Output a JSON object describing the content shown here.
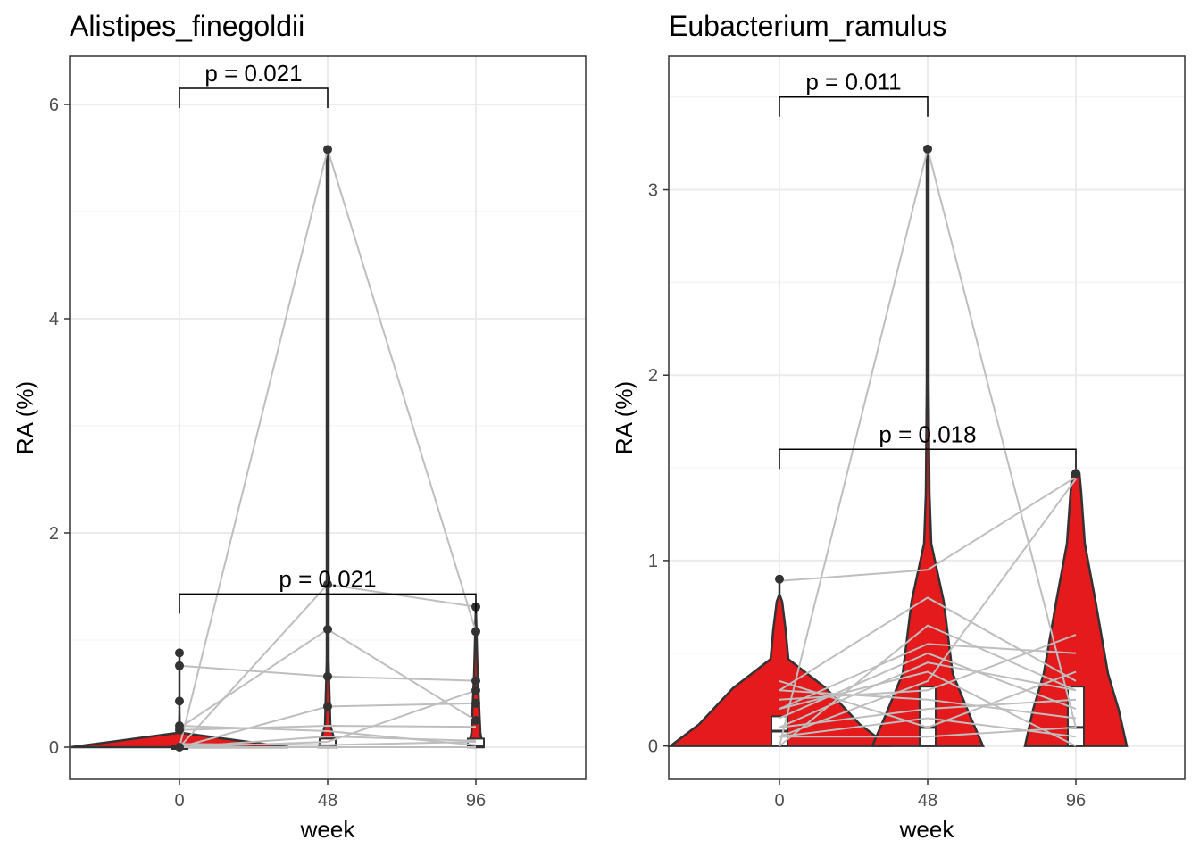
{
  "chart_data": [
    {
      "type": "violin",
      "title": "Alistipes_finegoldii",
      "xlabel": "week",
      "ylabel": "RA (%)",
      "categories": [
        "0",
        "48",
        "96"
      ],
      "ylim": [
        -0.3,
        6.45
      ],
      "yticks": [
        0,
        2,
        4,
        6
      ],
      "grid": true,
      "colors": {
        "violin_fill": "#e41a1c",
        "outline": "#333333",
        "lines": "#bebebe",
        "points": "#333333"
      },
      "points": {
        "0": [
          0.88,
          0.76,
          0.43,
          0.2,
          0.16,
          0.0
        ],
        "48": [
          5.58,
          1.52,
          1.1,
          0.66,
          0.38
        ],
        "96": [
          1.31,
          1.08,
          0.62,
          0.53,
          0.41,
          0.25
        ]
      },
      "paired_lines": [
        [
          0.0,
          5.58,
          1.08
        ],
        [
          0.18,
          1.1,
          0.25
        ],
        [
          0.0,
          1.52,
          1.31
        ],
        [
          0.76,
          0.66,
          0.62
        ],
        [
          0.0,
          0.38,
          0.41
        ],
        [
          0.16,
          0.2,
          0.19
        ],
        [
          0.2,
          0.15,
          0.02
        ],
        [
          0.0,
          0.1,
          0.06
        ],
        [
          0.03,
          0.02,
          0.05
        ],
        [
          0.0,
          0.05,
          0.53
        ],
        [
          0.0,
          0.0,
          0.0
        ]
      ],
      "comparisons": [
        {
          "from": "0",
          "to": "48",
          "label": "p = 0.021",
          "y": 6.15
        },
        {
          "from": "0",
          "to": "96",
          "label": "p = 0.021",
          "y": 1.43
        }
      ]
    },
    {
      "type": "violin",
      "title": "Eubacterium_ramulus",
      "xlabel": "week",
      "ylabel": "RA (%)",
      "categories": [
        "0",
        "48",
        "96"
      ],
      "ylim": [
        -0.18,
        3.72
      ],
      "yticks": [
        0,
        1,
        2,
        3
      ],
      "grid": true,
      "colors": {
        "violin_fill": "#e41a1c",
        "outline": "#333333",
        "lines": "#bebebe",
        "points": "#333333"
      },
      "points": {
        "0": [
          0.9
        ],
        "48": [
          3.22
        ],
        "96": [
          1.47
        ]
      },
      "paired_lines": [
        [
          0.0,
          3.22,
          0.1
        ],
        [
          0.89,
          0.95,
          1.45
        ],
        [
          0.3,
          0.8,
          0.35
        ],
        [
          0.2,
          0.55,
          0.5
        ],
        [
          0.1,
          0.45,
          0.3
        ],
        [
          0.05,
          0.35,
          1.44
        ],
        [
          0.25,
          0.3,
          0.6
        ],
        [
          0.15,
          0.5,
          0.2
        ],
        [
          0.35,
          0.1,
          0.4
        ],
        [
          0.1,
          0.2,
          0.25
        ],
        [
          0.05,
          0.05,
          0.1
        ],
        [
          0.2,
          0.4,
          0.0
        ],
        [
          0.0,
          0.65,
          0.3
        ],
        [
          0.05,
          0.15,
          0.05
        ],
        [
          0.3,
          0.25,
          0.15
        ]
      ],
      "comparisons": [
        {
          "from": "0",
          "to": "48",
          "label": "p = 0.011",
          "y": 3.5
        },
        {
          "from": "0",
          "to": "96",
          "label": "p = 0.018",
          "y": 1.6
        }
      ]
    }
  ]
}
